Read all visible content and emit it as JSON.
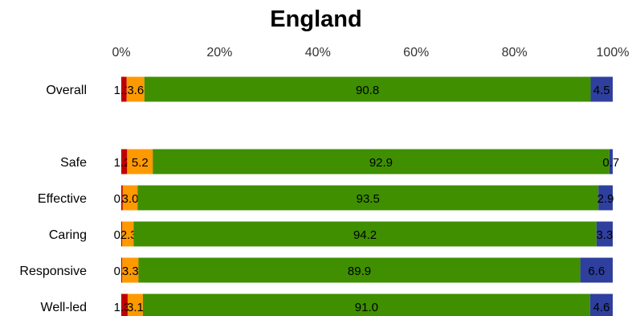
{
  "chart_data": {
    "type": "bar",
    "orientation": "horizontal",
    "stacked": "percent",
    "title": "England",
    "categories": [
      "Overall",
      "Safe",
      "Effective",
      "Caring",
      "Responsive",
      "Well-led"
    ],
    "xlim": [
      0,
      100
    ],
    "x_ticks": [
      "0%",
      "20%",
      "40%",
      "60%",
      "80%",
      "100%"
    ],
    "grid": false,
    "legend": "none",
    "series": [
      {
        "color": "#c00000",
        "values": [
          1.1,
          1.2,
          0.3,
          0.2,
          0.2,
          1.3
        ],
        "labels": [
          "1.1",
          "1.2",
          "0.3",
          "0.2",
          "0.2",
          "1.3"
        ]
      },
      {
        "color": "#ff9900",
        "values": [
          3.6,
          5.2,
          3.0,
          2.3,
          3.3,
          3.1
        ],
        "labels": [
          "3.6",
          "5.2",
          "3.0",
          "2.3",
          "3.3",
          "3.1"
        ]
      },
      {
        "color": "#3f8f00",
        "values": [
          90.8,
          92.9,
          93.5,
          94.2,
          89.9,
          91.0
        ],
        "labels": [
          "90.8",
          "92.9",
          "93.5",
          "94.2",
          "89.9",
          "91.0"
        ]
      },
      {
        "color": "#2e3f9e",
        "values": [
          4.5,
          0.7,
          2.9,
          3.3,
          6.6,
          4.6
        ],
        "labels": [
          "4.5",
          "0.7",
          "2.9",
          "3.3",
          "6.6",
          "4.6"
        ]
      }
    ]
  }
}
